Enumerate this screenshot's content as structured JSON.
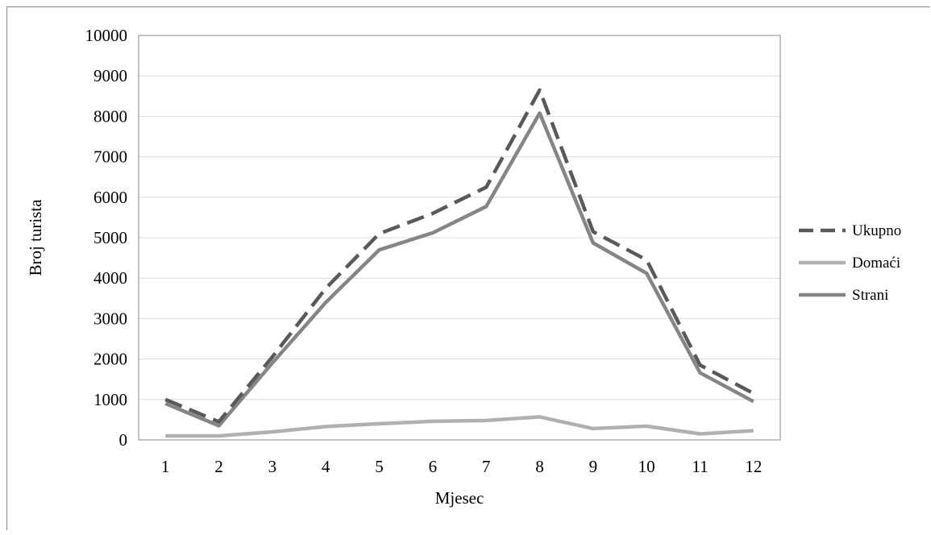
{
  "chart_data": {
    "type": "line",
    "xlabel": "Mjesec",
    "ylabel": "Broj turista",
    "categories": [
      "1",
      "2",
      "3",
      "4",
      "5",
      "6",
      "7",
      "8",
      "9",
      "10",
      "11",
      "12"
    ],
    "ylim": [
      0,
      10000
    ],
    "yticks": [
      0,
      1000,
      2000,
      3000,
      4000,
      5000,
      6000,
      7000,
      8000,
      9000,
      10000
    ],
    "grid": true,
    "legend_position": "right",
    "series": [
      {
        "name": "Ukupno",
        "style": "dashed",
        "color": "#595959",
        "values": [
          1000,
          450,
          2050,
          3750,
          5100,
          5600,
          6250,
          8650,
          5150,
          4450,
          1850,
          1150
        ]
      },
      {
        "name": "Domaći",
        "style": "solid",
        "color": "#b0b0b0",
        "values": [
          100,
          100,
          200,
          330,
          400,
          460,
          480,
          570,
          280,
          340,
          150,
          230
        ]
      },
      {
        "name": "Strani",
        "style": "solid",
        "color": "#858585",
        "values": [
          900,
          350,
          1900,
          3400,
          4700,
          5120,
          5770,
          8080,
          4870,
          4120,
          1660,
          950
        ]
      }
    ]
  }
}
